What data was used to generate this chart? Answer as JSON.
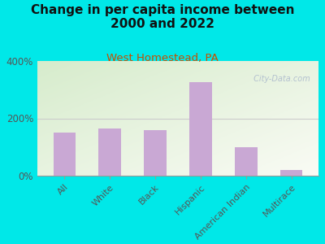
{
  "title": "Change in per capita income between\n2000 and 2022",
  "subtitle": "West Homestead, PA",
  "categories": [
    "All",
    "White",
    "Black",
    "Hispanic",
    "American Indian",
    "Multirace"
  ],
  "values": [
    150,
    165,
    160,
    325,
    100,
    20
  ],
  "bar_color": "#c9a8d4",
  "background_outer": "#00e8e8",
  "background_inner_top_left": "#d8ecd0",
  "background_inner_bottom_right": "#f8f8f2",
  "ylim": [
    0,
    400
  ],
  "yticks": [
    0,
    200,
    400
  ],
  "ytick_labels": [
    "0%",
    "200%",
    "400%"
  ],
  "title_fontsize": 11,
  "subtitle_fontsize": 9.5,
  "subtitle_color": "#c45000",
  "watermark": " City-Data.com",
  "watermark_color": "#aab8cc",
  "title_color": "#111111",
  "grid_line_color": "#cccccc",
  "tick_label_color": "#555555",
  "spine_color": "#999999"
}
